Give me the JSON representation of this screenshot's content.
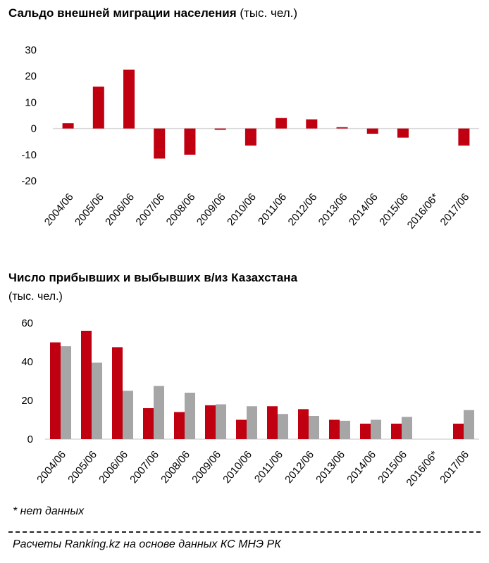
{
  "charts": {
    "top": {
      "title": "Сальдо внешней миграции  населения",
      "unit": "(тыс. чел.)"
    },
    "bottom": {
      "title": "Число  прибывших  и  выбывших  в/из Казахстана",
      "unit": "(тыс. чел.)"
    }
  },
  "note": "* нет данных",
  "source": "Расчеты Ranking.kz на основе данных КС МНЭ РК",
  "colors": {
    "red": "#c00010",
    "grey": "#a6a6a6",
    "axis": "#d9d9d9"
  },
  "chart_data": [
    {
      "type": "bar",
      "title": "Сальдо внешней миграции  населения",
      "ylabel": "(тыс. чел.)",
      "categories": [
        "2004/06",
        "2005/06",
        "2006/06",
        "2007/06",
        "2008/06",
        "2009/06",
        "2010/06",
        "2011/06",
        "2012/06",
        "2013/06",
        "2014/06",
        "2015/06",
        "2016/06*",
        "2017/06"
      ],
      "series": [
        {
          "values": [
            2,
            16,
            22.5,
            -11.5,
            -10,
            -0.5,
            -6.5,
            4,
            3.5,
            0.5,
            -2,
            -3.5,
            null,
            -6.5
          ]
        }
      ],
      "ylim": [
        -20,
        30
      ],
      "yticks": [
        30,
        20,
        10,
        0,
        -10,
        -20
      ]
    },
    {
      "type": "bar",
      "title": "Число  прибывших  и  выбывших  в/из Казахстана",
      "ylabel": "(тыс. чел.)",
      "categories": [
        "2004/06",
        "2005/06",
        "2006/06",
        "2007/06",
        "2008/06",
        "2009/06",
        "2010/06",
        "2011/06",
        "2012/06",
        "2013/06",
        "2014/06",
        "2015/06",
        "2016/06*",
        "2017/06"
      ],
      "series": [
        {
          "values": [
            50,
            56,
            47.5,
            16,
            14,
            17.5,
            10,
            17,
            15.5,
            10,
            8,
            8,
            null,
            8
          ]
        },
        {
          "values": [
            48,
            39.5,
            25,
            27.5,
            24,
            18,
            17,
            13,
            12,
            9.5,
            10,
            11.5,
            null,
            15
          ]
        }
      ],
      "ylim": [
        0,
        60
      ],
      "yticks": [
        60,
        40,
        20,
        0
      ]
    }
  ]
}
